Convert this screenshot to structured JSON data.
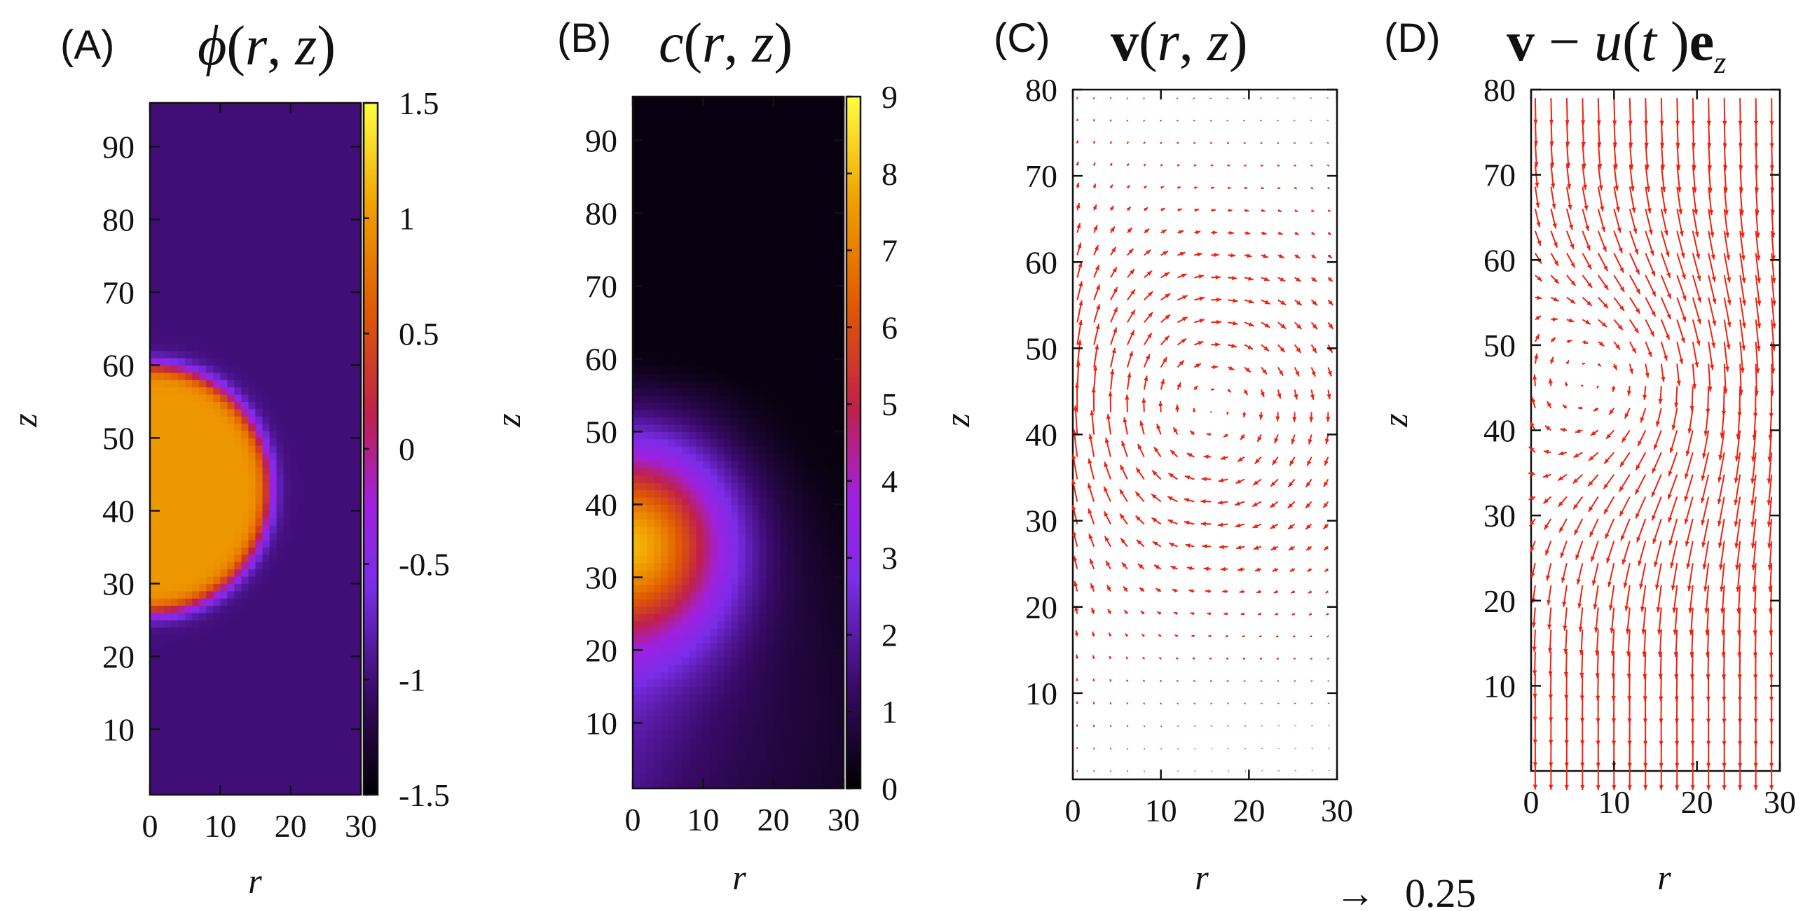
{
  "chart_data": [
    {
      "panel": "(A)",
      "type": "heatmap",
      "title": "ϕ(r, z)",
      "xlabel": "r",
      "ylabel": "z",
      "xlim": [
        0,
        30
      ],
      "ylim": [
        1,
        96
      ],
      "xticks": [
        "0",
        "10",
        "20",
        "30"
      ],
      "yticks": [
        "10",
        "20",
        "30",
        "40",
        "50",
        "60",
        "70",
        "80",
        "90"
      ],
      "colorbar": {
        "range": [
          -1.5,
          1.5
        ],
        "ticks": [
          "1.5",
          "1",
          "0.5",
          "0",
          "-0.5",
          "-1",
          "-1.5"
        ],
        "colormap": "gnuplot"
      },
      "field": {
        "kind": "droplet",
        "center_r": 0,
        "center_z": 43,
        "radius": 17,
        "inside": 1.0,
        "outside": -1.0,
        "interface_width": 1.4
      }
    },
    {
      "panel": "(B)",
      "type": "heatmap",
      "title": "c(r, z)",
      "xlabel": "r",
      "ylabel": "z",
      "xlim": [
        0,
        30
      ],
      "ylim": [
        1,
        96
      ],
      "xticks": [
        "0",
        "10",
        "20",
        "30"
      ],
      "yticks": [
        "10",
        "20",
        "30",
        "40",
        "50",
        "60",
        "70",
        "80",
        "90"
      ],
      "colorbar": {
        "range": [
          0,
          9
        ],
        "ticks": [
          "9",
          "8",
          "7",
          "6",
          "5",
          "4",
          "3",
          "2",
          "1",
          "0"
        ],
        "colormap": "gnuplot"
      },
      "field": {
        "kind": "concentration",
        "center_r": 0,
        "center_z": 35,
        "peak": 7.0,
        "core_radius": 13,
        "far_low": 0.2
      }
    },
    {
      "panel": "(C)",
      "type": "vector_field",
      "title": "v(r, z)",
      "xlabel": "r",
      "ylabel": "z",
      "xlim": [
        0,
        30
      ],
      "ylim": [
        0,
        80
      ],
      "xticks": [
        "0",
        "10",
        "20",
        "30"
      ],
      "yticks": [
        "10",
        "20",
        "30",
        "40",
        "50",
        "60",
        "70",
        "80"
      ],
      "frame": "lab",
      "vortex_center": [
        15,
        43
      ],
      "uniform_shift": 0.0,
      "arrow_color": "#ee2211"
    },
    {
      "panel": "(D)",
      "type": "vector_field",
      "title": "v − u(t)e_z",
      "xlabel": "r",
      "ylabel": "z",
      "xlim": [
        0,
        30
      ],
      "ylim": [
        0,
        80
      ],
      "xticks": [
        "0",
        "10",
        "20",
        "30"
      ],
      "yticks": [
        "10",
        "20",
        "30",
        "40",
        "50",
        "60",
        "70",
        "80"
      ],
      "frame": "comoving",
      "vortex_center": [
        11,
        46
      ],
      "uniform_shift": -0.22,
      "arrow_color": "#ee2211"
    }
  ],
  "scale_arrow": {
    "symbol": "→",
    "value": "0.25"
  }
}
